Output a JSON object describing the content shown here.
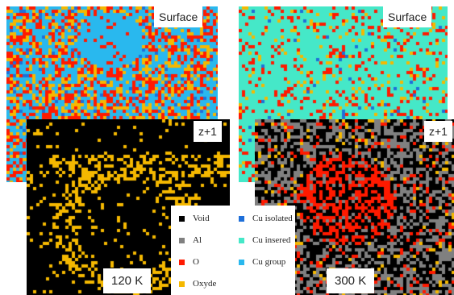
{
  "panels": {
    "surface_120": {
      "label": "Surface"
    },
    "z_120": {
      "label": "z+1",
      "temperature": "120 K"
    },
    "surface_300": {
      "label": "Surface"
    },
    "z_300": {
      "label": "z+1",
      "temperature": "300 K"
    }
  },
  "legend": {
    "items": [
      {
        "label": "Void",
        "color": "#000000"
      },
      {
        "label": "Al",
        "color": "#808080"
      },
      {
        "label": "O",
        "color": "#ff1a00"
      },
      {
        "label": "Oxyde",
        "color": "#f5b800"
      },
      {
        "label": "Cu isolated",
        "color": "#1e6fd9"
      },
      {
        "label": "Cu insered",
        "color": "#45e8c8"
      },
      {
        "label": "Cu group",
        "color": "#29b8ee"
      }
    ]
  }
}
